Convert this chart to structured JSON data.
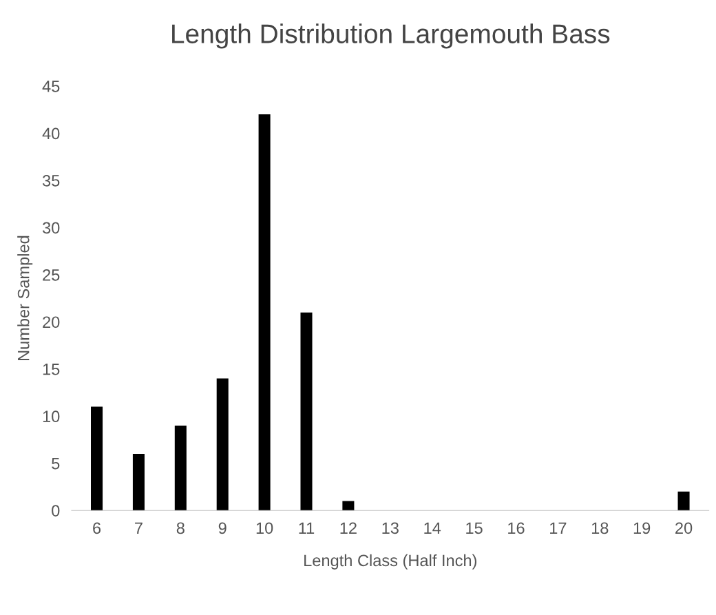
{
  "chart_data": {
    "type": "bar",
    "title": "Length Distribution Largemouth Bass",
    "xlabel": "Length Class (Half Inch)",
    "ylabel": "Number Sampled",
    "categories": [
      "6",
      "7",
      "8",
      "9",
      "10",
      "11",
      "12",
      "13",
      "14",
      "15",
      "16",
      "17",
      "18",
      "19",
      "20"
    ],
    "values": [
      11,
      6,
      9,
      14,
      42,
      21,
      1,
      0,
      0,
      0,
      0,
      0,
      0,
      0,
      2
    ],
    "color": "#000000",
    "ylim": [
      0,
      45
    ],
    "yticks": [
      0,
      5,
      10,
      15,
      20,
      25,
      30,
      35,
      40,
      45
    ],
    "grid": false
  }
}
